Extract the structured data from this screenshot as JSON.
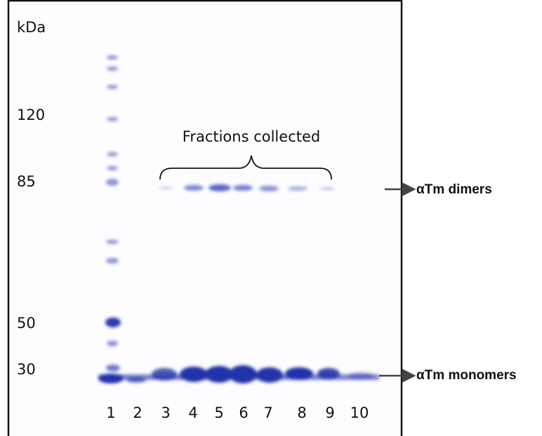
{
  "axis_label": "kDa",
  "markers": [
    120,
    85,
    50,
    30
  ],
  "lanes": [
    1,
    2,
    3,
    4,
    5,
    6,
    7,
    8,
    9,
    10
  ],
  "bracket_label": "Fractions collected",
  "annotations": [
    "αTm dimers",
    "αTm monomers"
  ]
}
